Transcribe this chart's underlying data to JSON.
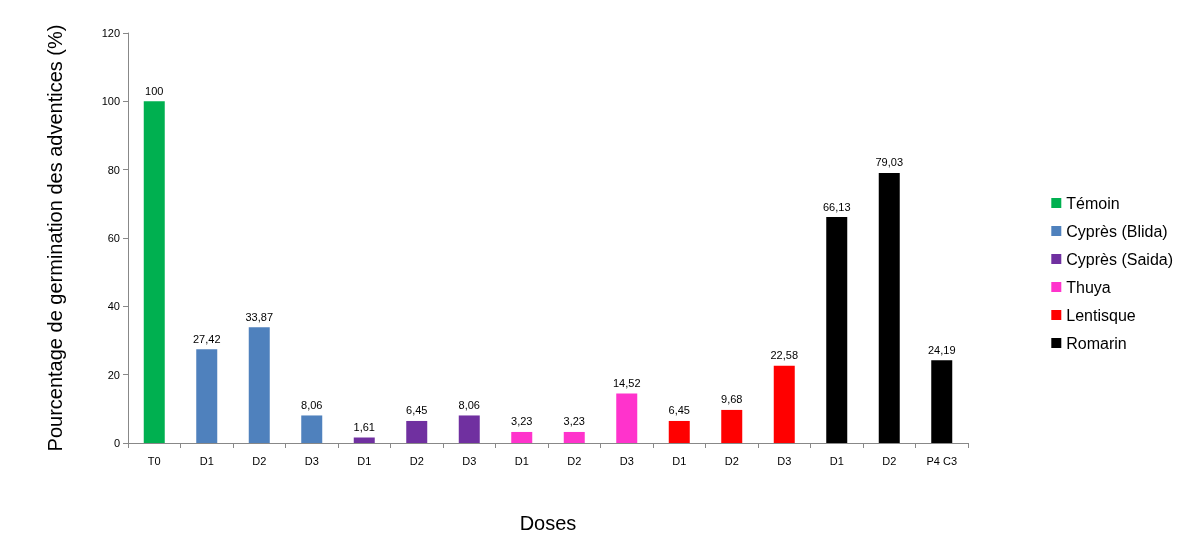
{
  "chart_data": {
    "type": "bar",
    "xlabel": "Doses",
    "ylabel": "Pourcentage de germination des adventices (%)",
    "categories": [
      "T0",
      "D1",
      "D2",
      "D3",
      "D1",
      "D2",
      "D3",
      "D1",
      "D2",
      "D3",
      "D1",
      "D2",
      "D3",
      "D1",
      "D2",
      "P4 C3"
    ],
    "series": [
      {
        "name": "Témoin",
        "color": "#00b050",
        "values": [
          100,
          null,
          null,
          null,
          null,
          null,
          null,
          null,
          null,
          null,
          null,
          null,
          null,
          null,
          null,
          null
        ],
        "value_labels": [
          "100",
          null,
          null,
          null,
          null,
          null,
          null,
          null,
          null,
          null,
          null,
          null,
          null,
          null,
          null,
          null
        ]
      },
      {
        "name": "Cyprès (Blida)",
        "color": "#4f81bd",
        "values": [
          null,
          27.42,
          33.87,
          8.06,
          null,
          null,
          null,
          null,
          null,
          null,
          null,
          null,
          null,
          null,
          null,
          null
        ],
        "value_labels": [
          null,
          "27,42",
          "33,87",
          "8,06",
          null,
          null,
          null,
          null,
          null,
          null,
          null,
          null,
          null,
          null,
          null,
          null
        ]
      },
      {
        "name": "Cyprès (Saida)",
        "color": "#7030a0",
        "values": [
          null,
          null,
          null,
          null,
          1.61,
          6.45,
          8.06,
          null,
          null,
          null,
          null,
          null,
          null,
          null,
          null,
          null
        ],
        "value_labels": [
          null,
          null,
          null,
          null,
          "1,61",
          "6,45",
          "8,06",
          null,
          null,
          null,
          null,
          null,
          null,
          null,
          null,
          null
        ]
      },
      {
        "name": "Thuya",
        "color": "#ff33cc",
        "values": [
          null,
          null,
          null,
          null,
          null,
          null,
          null,
          3.23,
          3.23,
          14.52,
          null,
          null,
          null,
          null,
          null,
          null
        ],
        "value_labels": [
          null,
          null,
          null,
          null,
          null,
          null,
          null,
          "3,23",
          "3,23",
          "14,52",
          null,
          null,
          null,
          null,
          null,
          null
        ]
      },
      {
        "name": "Lentisque",
        "color": "#ff0000",
        "values": [
          null,
          null,
          null,
          null,
          null,
          null,
          null,
          null,
          null,
          null,
          6.45,
          9.68,
          22.58,
          null,
          null,
          null
        ],
        "value_labels": [
          null,
          null,
          null,
          null,
          null,
          null,
          null,
          null,
          null,
          null,
          "6,45",
          "9,68",
          "22,58",
          null,
          null,
          null
        ]
      },
      {
        "name": "Romarin",
        "color": "#000000",
        "values": [
          null,
          null,
          null,
          null,
          null,
          null,
          null,
          null,
          null,
          null,
          null,
          null,
          null,
          66.13,
          79.03,
          24.19
        ],
        "value_labels": [
          null,
          null,
          null,
          null,
          null,
          null,
          null,
          null,
          null,
          null,
          null,
          null,
          null,
          "66,13",
          "79,03",
          "24,19"
        ]
      }
    ],
    "ylim": [
      0,
      120
    ],
    "yticks": [
      0,
      20,
      40,
      60,
      80,
      100,
      120
    ],
    "grid": false,
    "legend": "right"
  }
}
